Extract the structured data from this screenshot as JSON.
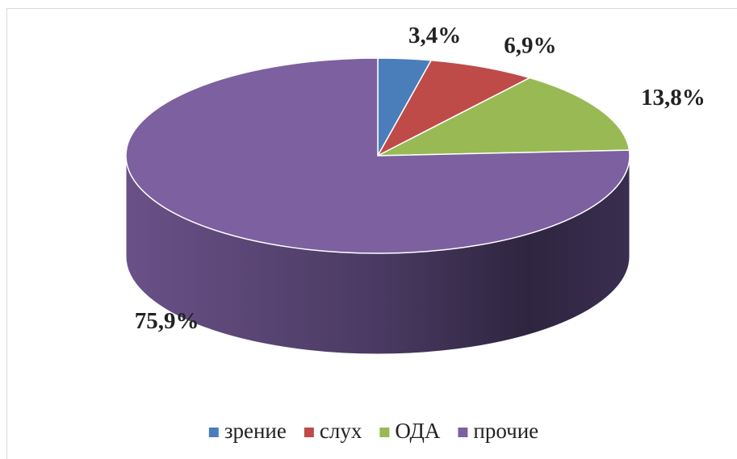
{
  "chart_data": {
    "type": "pie",
    "categories": [
      "зрение",
      "слух",
      "ОДА",
      "прочие"
    ],
    "values": [
      3.4,
      6.9,
      13.8,
      75.9
    ],
    "value_labels": [
      "3,4%",
      "6,9%",
      "13,8%",
      "75,9%"
    ],
    "colors": [
      "#4a7ebb",
      "#be4b48",
      "#98b954",
      "#7d60a0"
    ],
    "legend": "bottom"
  }
}
